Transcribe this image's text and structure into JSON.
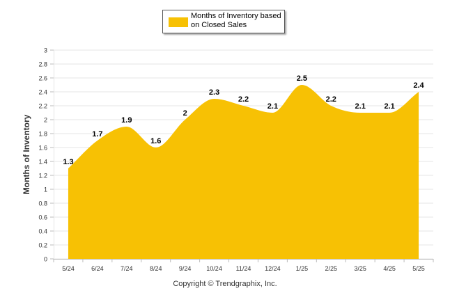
{
  "legend": {
    "label": "Months of Inventory based on Closed Sales"
  },
  "copyright": "Copyright © Trendgraphix, Inc.",
  "colors": {
    "fill": "#F7C104",
    "grid": "#E6E6E6",
    "axis": "#BBBBBB",
    "text": "#333333"
  },
  "chart_data": {
    "type": "area",
    "title": "",
    "xlabel": "",
    "ylabel": "Months of Inventory",
    "categories": [
      "5/24",
      "6/24",
      "7/24",
      "8/24",
      "9/24",
      "10/24",
      "11/24",
      "12/24",
      "1/25",
      "2/25",
      "3/25",
      "4/25",
      "5/25"
    ],
    "series": [
      {
        "name": "Months of Inventory based on Closed Sales",
        "values": [
          1.3,
          1.7,
          1.9,
          1.6,
          2,
          2.3,
          2.2,
          2.1,
          2.5,
          2.2,
          2.1,
          2.1,
          2.4
        ]
      }
    ],
    "yticks": [
      "0",
      "0.2",
      "0.4",
      "0.6",
      "0.8",
      "1",
      "1.2",
      "1.4",
      "1.6",
      "1.8",
      "2",
      "2.2",
      "2.4",
      "2.6",
      "2.8",
      "3"
    ],
    "ylim": [
      0,
      3
    ],
    "grid": true,
    "legend_position": "top-center"
  }
}
